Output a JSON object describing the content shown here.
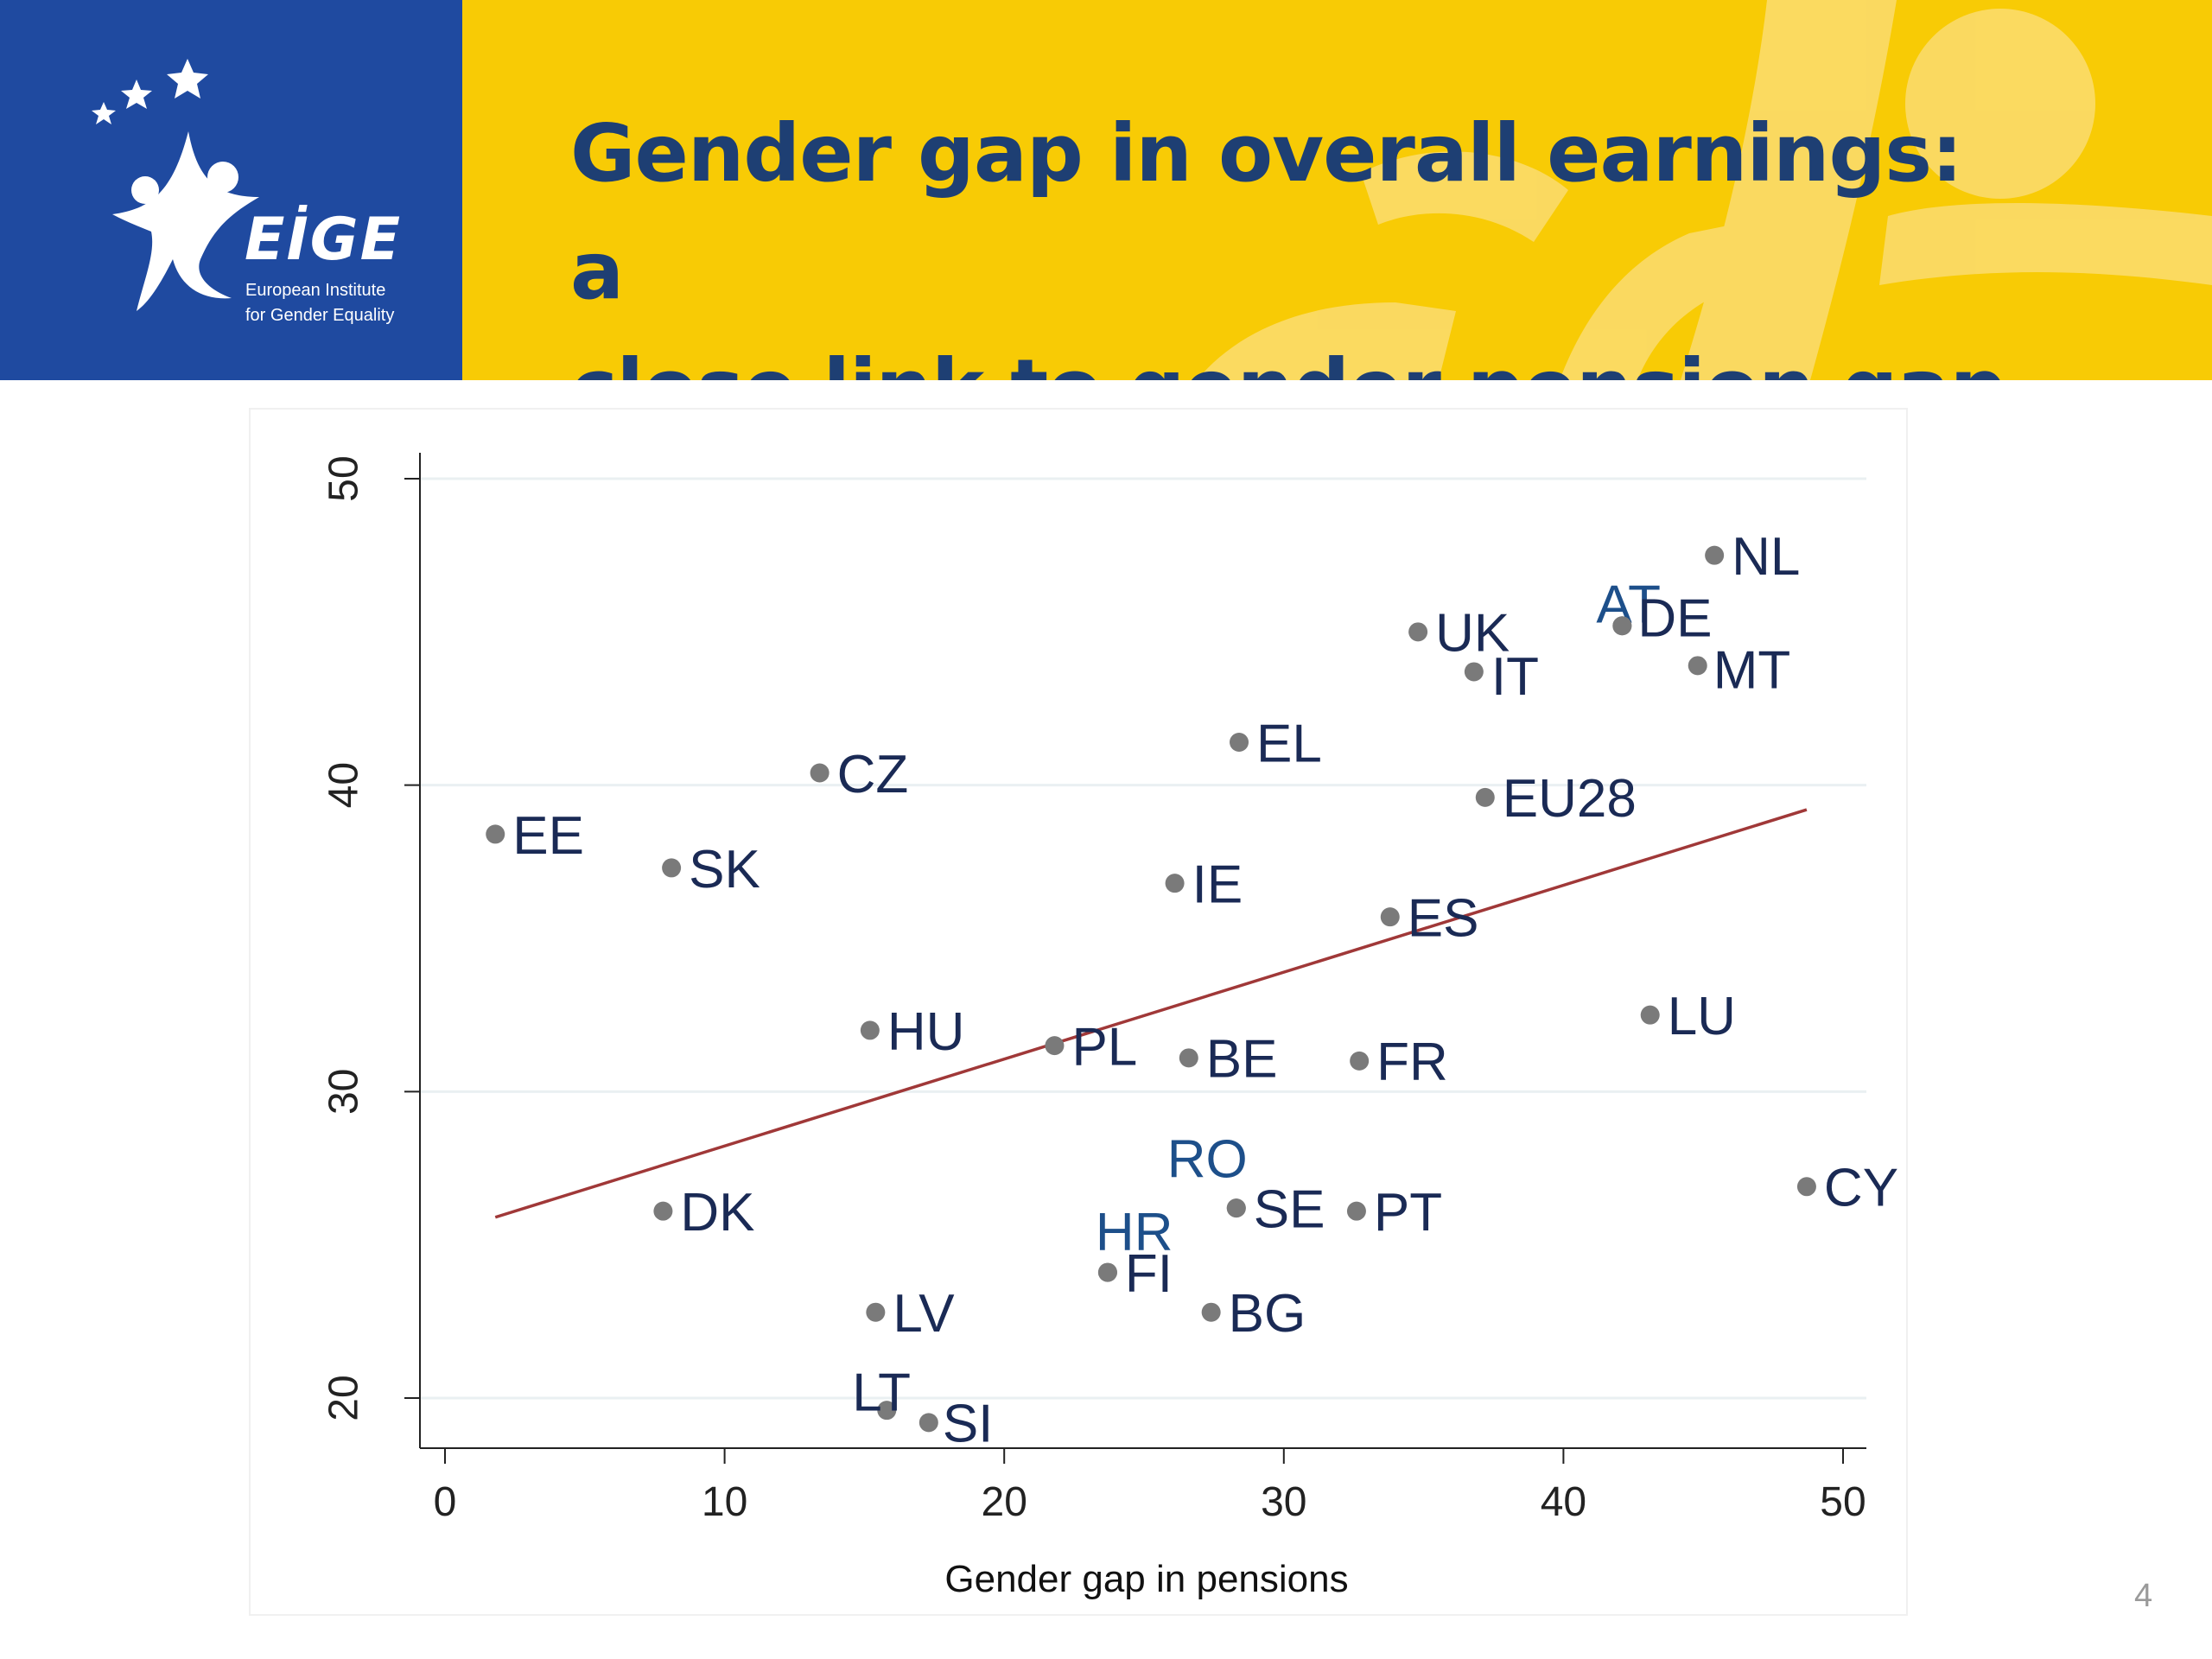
{
  "slide": {
    "title_line1": "Gender gap in overall earnings: a",
    "title_line2": "close link to gender pension gap",
    "page_number": "4"
  },
  "logo": {
    "wordmark": "EİGE",
    "subtitle_line1": "European Institute",
    "subtitle_line2": "for Gender Equality",
    "icon": "eige-star-figure-icon"
  },
  "colors": {
    "header_blue": "#1f4aa0",
    "header_yellow": "#f8cb05",
    "title_text": "#1e3f73",
    "point": "#7a7a7a",
    "label": "#1a2a55",
    "label_highlight": "#1d4f8a",
    "fit_line": "#a03838"
  },
  "chart_data": {
    "type": "scatter",
    "title": "",
    "xlabel": "Gender gap in pensions",
    "ylabel": "",
    "xlim": [
      0,
      50
    ],
    "ylim": [
      20,
      50
    ],
    "xticks": [
      0,
      10,
      20,
      30,
      40,
      50
    ],
    "yticks": [
      20,
      30,
      40,
      50
    ],
    "grid": true,
    "points": [
      {
        "label": "NL",
        "x": 45.4,
        "y": 47.5
      },
      {
        "label": "AT",
        "x": 42.1,
        "y": 45.2
      },
      {
        "label": "DE",
        "x": 42.1,
        "y": 45.2
      },
      {
        "label": "UK",
        "x": 34.8,
        "y": 45.0
      },
      {
        "label": "MT",
        "x": 44.8,
        "y": 43.9
      },
      {
        "label": "IT",
        "x": 36.8,
        "y": 43.7
      },
      {
        "label": "EL",
        "x": 28.4,
        "y": 41.4
      },
      {
        "label": "CZ",
        "x": 13.4,
        "y": 40.4
      },
      {
        "label": "EU28",
        "x": 37.2,
        "y": 39.6
      },
      {
        "label": "EE",
        "x": 1.8,
        "y": 38.4
      },
      {
        "label": "SK",
        "x": 8.1,
        "y": 37.3
      },
      {
        "label": "IE",
        "x": 26.1,
        "y": 36.8
      },
      {
        "label": "ES",
        "x": 33.8,
        "y": 35.7
      },
      {
        "label": "LU",
        "x": 43.1,
        "y": 32.5
      },
      {
        "label": "HU",
        "x": 15.2,
        "y": 32.0
      },
      {
        "label": "PL",
        "x": 21.8,
        "y": 31.5
      },
      {
        "label": "BE",
        "x": 26.6,
        "y": 31.1
      },
      {
        "label": "FR",
        "x": 32.7,
        "y": 31.0
      },
      {
        "label": "CY",
        "x": 48.7,
        "y": 26.9
      },
      {
        "label": "RO",
        "x": 28.3,
        "y": 26.2
      },
      {
        "label": "SE",
        "x": 28.3,
        "y": 26.2
      },
      {
        "label": "PT",
        "x": 32.6,
        "y": 26.1
      },
      {
        "label": "DK",
        "x": 7.8,
        "y": 26.1
      },
      {
        "label": "HR",
        "x": 23.7,
        "y": 24.1
      },
      {
        "label": "FI",
        "x": 23.7,
        "y": 24.1
      },
      {
        "label": "LV",
        "x": 15.4,
        "y": 22.8
      },
      {
        "label": "BG",
        "x": 27.4,
        "y": 22.8
      },
      {
        "label": "LT",
        "x": 15.8,
        "y": 19.6
      },
      {
        "label": "SI",
        "x": 17.3,
        "y": 19.2
      }
    ],
    "fit_line": {
      "x": [
        1.8,
        48.7
      ],
      "y": [
        25.9,
        39.2
      ]
    }
  }
}
